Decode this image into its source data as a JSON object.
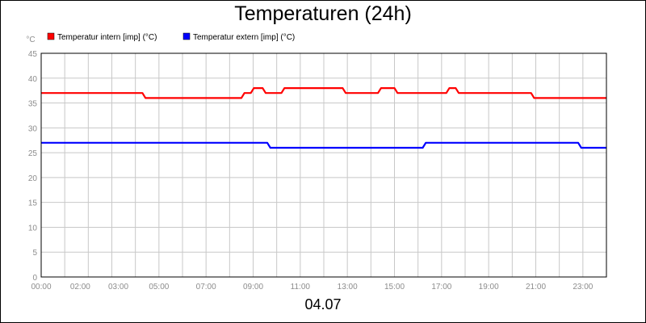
{
  "chart_data": {
    "type": "line",
    "title": "Temperaturen (24h)",
    "ylabel": "°C",
    "xlabel": "04.07",
    "ylim": [
      0,
      45
    ],
    "yticks": [
      0,
      5,
      10,
      15,
      20,
      25,
      30,
      35,
      40,
      45
    ],
    "xlim": [
      0,
      24
    ],
    "xticks": [
      {
        "x": 0,
        "label": "00:00"
      },
      {
        "x": 2,
        "label": "02:00"
      },
      {
        "x": 3,
        "label": "03:00"
      },
      {
        "x": 5,
        "label": "05:00"
      },
      {
        "x": 7,
        "label": "07:00"
      },
      {
        "x": 9,
        "label": "09:00"
      },
      {
        "x": 11,
        "label": "11:00"
      },
      {
        "x": 13,
        "label": "13:00"
      },
      {
        "x": 15,
        "label": "15:00"
      },
      {
        "x": 17,
        "label": "17:00"
      },
      {
        "x": 19,
        "label": "19:00"
      },
      {
        "x": 21,
        "label": "21:00"
      },
      {
        "x": 23,
        "label": "23:00"
      }
    ],
    "grid": true,
    "legend_position": "top-left",
    "series": [
      {
        "name": "Temperatur intern [imp] (°C)",
        "color": "#ff0000",
        "points": [
          [
            0,
            37
          ],
          [
            4.3,
            37
          ],
          [
            4.43,
            36
          ],
          [
            8.5,
            36
          ],
          [
            8.63,
            37
          ],
          [
            8.9,
            37
          ],
          [
            9.03,
            38
          ],
          [
            9.4,
            38
          ],
          [
            9.53,
            37
          ],
          [
            10.2,
            37
          ],
          [
            10.33,
            38
          ],
          [
            12.8,
            38
          ],
          [
            12.93,
            37
          ],
          [
            14.3,
            37
          ],
          [
            14.43,
            38
          ],
          [
            15.0,
            38
          ],
          [
            15.13,
            37
          ],
          [
            17.2,
            37
          ],
          [
            17.33,
            38
          ],
          [
            17.6,
            38
          ],
          [
            17.73,
            37
          ],
          [
            20.8,
            37
          ],
          [
            20.93,
            36
          ],
          [
            24,
            36
          ]
        ]
      },
      {
        "name": "Temperatur extern [imp] (°C)",
        "color": "#0000ff",
        "points": [
          [
            0,
            27
          ],
          [
            9.6,
            27
          ],
          [
            9.73,
            26
          ],
          [
            16.2,
            26
          ],
          [
            16.33,
            27
          ],
          [
            22.8,
            27
          ],
          [
            22.93,
            26
          ],
          [
            24,
            26
          ]
        ]
      }
    ]
  }
}
